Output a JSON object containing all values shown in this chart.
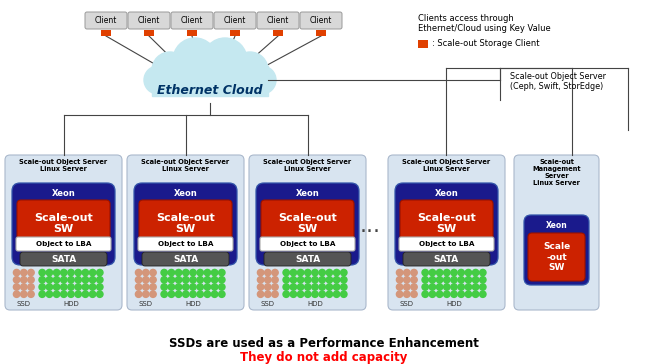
{
  "fig_width": 6.48,
  "fig_height": 3.64,
  "dpi": 100,
  "bg_color": "#ffffff",
  "title_text": "SSDs are used as a Performance Enhancement",
  "subtitle_text": "They do not add capacity",
  "subtitle_color": "#ff0000",
  "title_color": "#000000",
  "cloud_color": "#c5e8f0",
  "cloud_text": "Ethernet Cloud",
  "client_labels": [
    "Client",
    "Client",
    "Client",
    "Client",
    "Client",
    "Client"
  ],
  "client_box_color": "#d8d8d8",
  "client_box_edge": "#999999",
  "orange_color": "#e04000",
  "server_bg_color": "#d8e4f0",
  "server_border_color": "#aab8cc",
  "server_labels_full": [
    "Scale-out Object Server\nLinux Server",
    "Scale-out Object Server\nLinux Server",
    "Scale-out Object Server\nLinux Server",
    "Scale-out Object Server\nLinux Server"
  ],
  "server_label_mgmt": "Scale-out\nManagement\nServer\nLinux Server",
  "xeon_bg": "#1a1a8c",
  "xeon_label": "Xeon",
  "scaleout_bg": "#cc2200",
  "scaleout_text": "Scale-out\nSW",
  "obj_lba_bg": "#ffffff",
  "obj_lba_text": "Object to LBA",
  "obj_lba_edge": "#aaaaaa",
  "sata_bg": "#555555",
  "sata_text": "SATA",
  "line_color": "#444444",
  "note1": "Clients access through\nEthernet/Cloud using Key Value",
  "note2": ": Scale-out Storage Client",
  "note3": "Scale-out Object Server\n(Ceph, Swift, StorEdge)",
  "ssd_color": "#d4967a",
  "hdd_color": "#44cc44",
  "dot_r": 3.2
}
